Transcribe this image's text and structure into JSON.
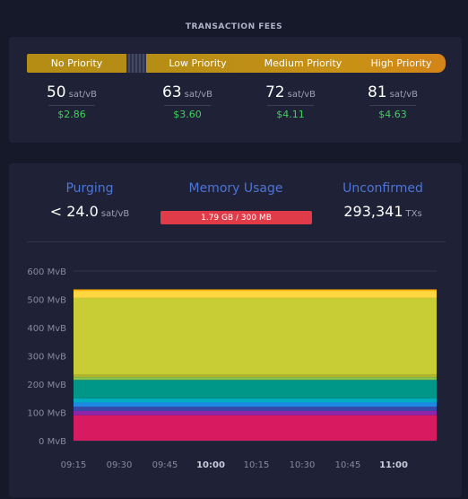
{
  "header": {
    "title": "TRANSACTION FEES"
  },
  "fees": {
    "bar_labels": [
      "No Priority",
      "Low Priority",
      "Medium Priority",
      "High Priority"
    ],
    "items": [
      {
        "label": "No Priority",
        "value": "50",
        "unit": "sat/vB",
        "usd": "$2.86"
      },
      {
        "label": "Low Priority",
        "value": "63",
        "unit": "sat/vB",
        "usd": "$3.60"
      },
      {
        "label": "Medium Priority",
        "value": "72",
        "unit": "sat/vB",
        "usd": "$4.11"
      },
      {
        "label": "High Priority",
        "value": "81",
        "unit": "sat/vB",
        "usd": "$4.63"
      }
    ]
  },
  "mempool": {
    "purging": {
      "heading": "Purging",
      "value": "< 24.0",
      "unit": "sat/vB"
    },
    "memory": {
      "heading": "Memory Usage",
      "value": "1.79 GB / 300 MB",
      "fill_fraction": 1.0
    },
    "unconfirmed": {
      "heading": "Unconfirmed",
      "value": "293,341",
      "unit": "TXs"
    }
  },
  "colors": {
    "accent_blue": "#4d74d6",
    "usd_green": "#3ed05a",
    "memory_red": "#e03b48",
    "fee_bar_gold": "#b58d15"
  },
  "chart_data": {
    "type": "area",
    "stacked": true,
    "x": [
      "09:15",
      "09:30",
      "09:45",
      "10:00",
      "10:15",
      "10:30",
      "10:45",
      "11:00"
    ],
    "x_bold": [
      "10:00",
      "11:00"
    ],
    "y_ticks": [
      "0 MvB",
      "100 MvB",
      "200 MvB",
      "300 MvB",
      "400 MvB",
      "500 MvB",
      "600 MvB"
    ],
    "ylim": [
      0,
      600
    ],
    "grid": true,
    "series": [
      {
        "color": "#d81b60",
        "value": 90
      },
      {
        "color": "#8e24aa",
        "value": 15
      },
      {
        "color": "#3949ab",
        "value": 15
      },
      {
        "color": "#1e88e5",
        "value": 15
      },
      {
        "color": "#00acc1",
        "value": 15
      },
      {
        "color": "#009688",
        "value": 65
      },
      {
        "color": "#8bc34a",
        "value": 10
      },
      {
        "color": "#afb42b",
        "value": 10
      },
      {
        "color": "#c8cd35",
        "value": 270
      },
      {
        "color": "#ffd740",
        "value": 25
      },
      {
        "color": "#ffb300",
        "value": 5
      }
    ]
  }
}
